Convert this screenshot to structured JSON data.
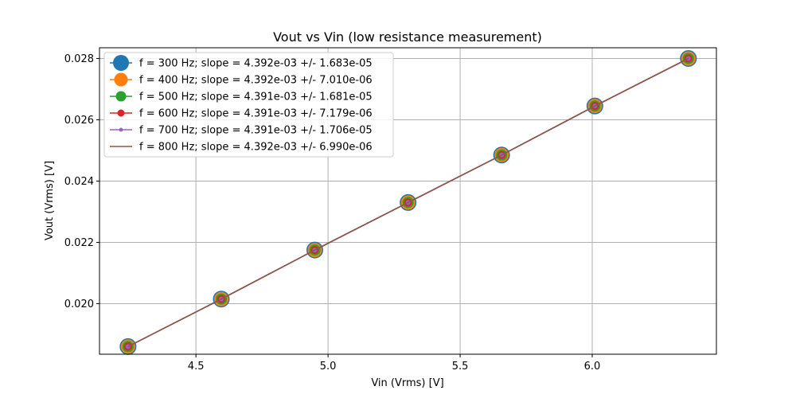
{
  "chart_data": {
    "type": "line",
    "title": "Vout vs Vin (low resistance measurement)",
    "xlabel": "Vin (Vrms) [V]",
    "ylabel": "Vout (Vrms) [V]",
    "xlim": [
      4.135,
      6.47
    ],
    "ylim": [
      0.01835,
      0.02835
    ],
    "xticks": [
      4.5,
      5.0,
      5.5,
      6.0
    ],
    "xtick_labels": [
      "4.5",
      "5.0",
      "5.5",
      "6.0"
    ],
    "yticks": [
      0.02,
      0.022,
      0.024,
      0.026,
      0.028
    ],
    "ytick_labels": [
      "0.020",
      "0.022",
      "0.024",
      "0.026",
      "0.028"
    ],
    "grid": true,
    "legend_position": "top-left",
    "x": [
      4.243,
      4.596,
      4.95,
      5.303,
      5.657,
      6.01,
      6.364
    ],
    "series": [
      {
        "name": "f = 300 Hz; slope = 4.392e-03 +/- 1.683e-05",
        "color": "#1f77b4",
        "marker": "circle-large",
        "y": [
          0.0186,
          0.02015,
          0.02175,
          0.0233,
          0.02485,
          0.02645,
          0.028
        ]
      },
      {
        "name": "f = 400 Hz; slope = 4.392e-03 +/- 7.010e-06",
        "color": "#ff7f0e",
        "marker": "circle-large2",
        "y": [
          0.0186,
          0.02015,
          0.02175,
          0.0233,
          0.02485,
          0.02645,
          0.028
        ]
      },
      {
        "name": "f = 500 Hz; slope = 4.391e-03 +/- 1.681e-05",
        "color": "#2ca02c",
        "marker": "circle-medium",
        "y": [
          0.0186,
          0.02015,
          0.02175,
          0.0233,
          0.02485,
          0.02645,
          0.028
        ]
      },
      {
        "name": "f = 600 Hz; slope = 4.391e-03 +/- 7.179e-06",
        "color": "#d62728",
        "marker": "circle-small",
        "y": [
          0.0186,
          0.02015,
          0.02175,
          0.0233,
          0.02485,
          0.02645,
          0.028
        ]
      },
      {
        "name": "f = 700 Hz; slope = 4.391e-03 +/- 1.706e-05",
        "color": "#9467bd",
        "marker": "circle-tiny",
        "y": [
          0.0186,
          0.02015,
          0.02175,
          0.0233,
          0.02485,
          0.02645,
          0.028
        ]
      },
      {
        "name": "f = 800 Hz; slope = 4.392e-03 +/- 6.990e-06",
        "color": "#8c564b",
        "marker": "none",
        "y": [
          0.0186,
          0.02015,
          0.02175,
          0.0233,
          0.02485,
          0.02645,
          0.028
        ]
      }
    ]
  }
}
